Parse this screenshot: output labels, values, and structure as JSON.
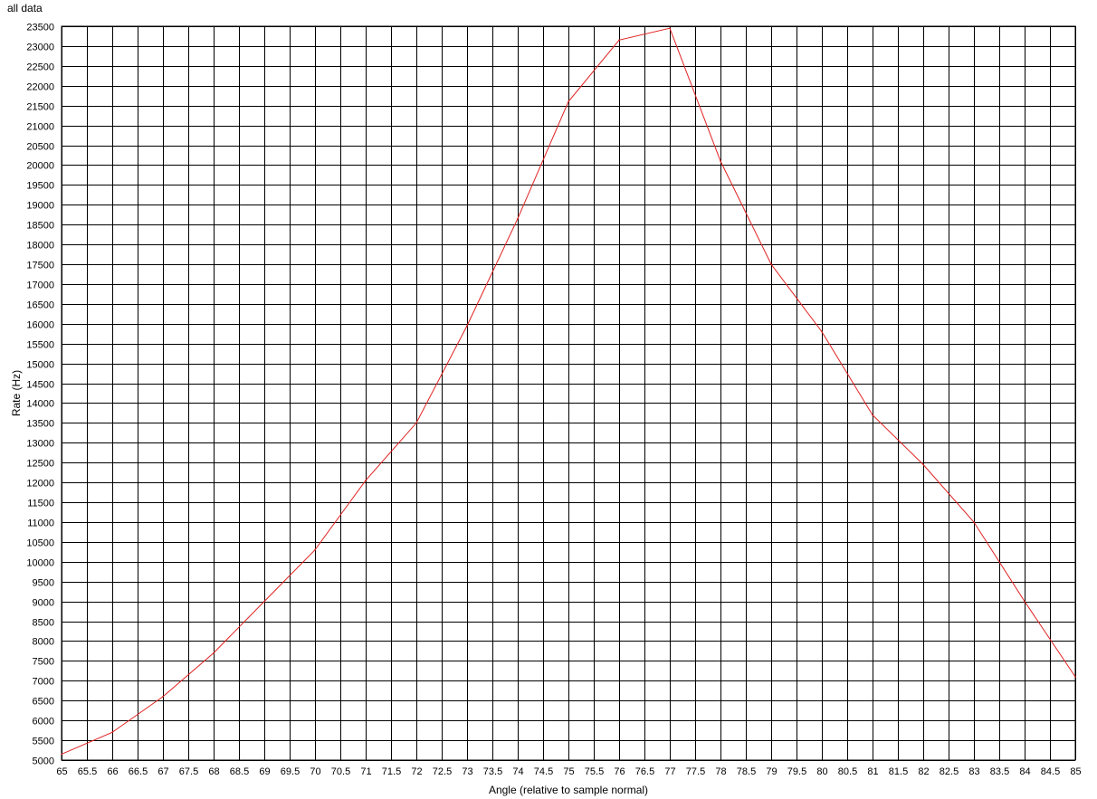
{
  "chart_data": {
    "type": "line",
    "title": "all data",
    "xlabel": "Angle (relative to sample normal)",
    "ylabel": "Rate (Hz)",
    "xlim": [
      65,
      85
    ],
    "ylim": [
      5000,
      23500
    ],
    "x_tick_step": 0.5,
    "y_tick_step": 500,
    "grid": true,
    "line_color": "#e02020",
    "series": [
      {
        "x": [
          65,
          66,
          67,
          68,
          69,
          70,
          71,
          72,
          73,
          74,
          75,
          76,
          77,
          78,
          79,
          80,
          81,
          82,
          83,
          84,
          85
        ],
        "values": [
          5150,
          5700,
          6600,
          7700,
          9000,
          10300,
          12050,
          13500,
          15950,
          18650,
          21600,
          23150,
          23450,
          20100,
          17500,
          15800,
          13700,
          12450,
          11000,
          9000,
          7100
        ]
      }
    ]
  }
}
